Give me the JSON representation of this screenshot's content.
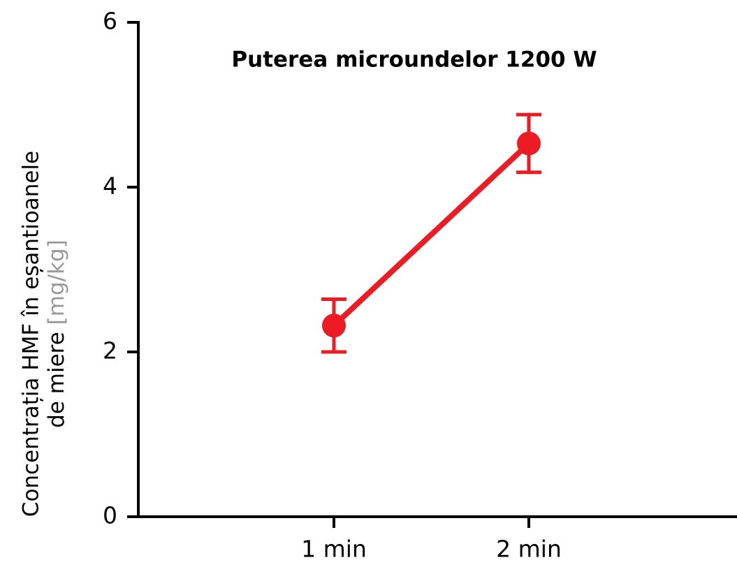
{
  "chart_data": {
    "type": "line",
    "title": "Puterea microundelor 1200 W",
    "y_label": [
      "Concentrația HMF în eșantioanele",
      "de miere"
    ],
    "y_unit": "[mg/kg]",
    "categories": [
      "1 min",
      "2 min"
    ],
    "values": [
      2.32,
      4.53
    ],
    "errors": [
      0.32,
      0.35
    ],
    "color": "#ed1c24",
    "ylim": [
      0,
      6
    ],
    "yticks": [
      0,
      2,
      4,
      6
    ]
  }
}
